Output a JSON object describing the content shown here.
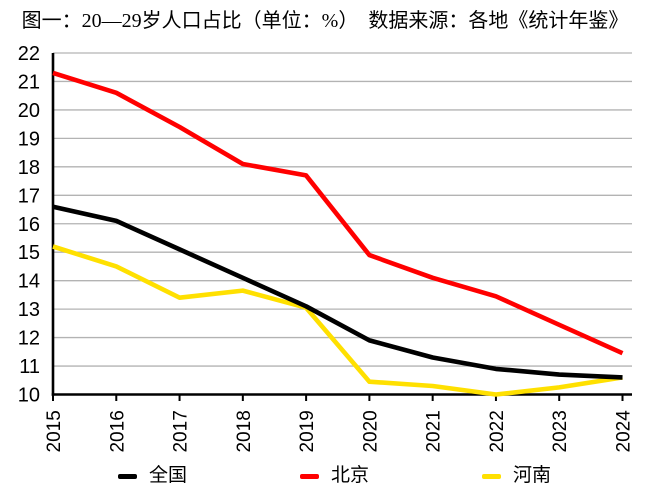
{
  "title": "图一：20—29岁人口占比（单位：%）　数据来源：各地《统计年鉴》",
  "chart_data": {
    "type": "line",
    "x": [
      2015,
      2016,
      2017,
      2018,
      2019,
      2020,
      2021,
      2022,
      2023,
      2024
    ],
    "series": [
      {
        "name": "全国",
        "color": "#000000",
        "values": [
          16.6,
          16.1,
          15.1,
          14.1,
          13.1,
          11.9,
          11.3,
          10.9,
          10.7,
          10.6
        ]
      },
      {
        "name": "北京",
        "color": "#ff0000",
        "values": [
          21.3,
          20.6,
          19.4,
          18.1,
          17.7,
          14.9,
          14.1,
          13.45,
          12.45,
          11.45
        ]
      },
      {
        "name": "河南",
        "color": "#ffe000",
        "values": [
          15.2,
          14.5,
          13.4,
          13.65,
          13.05,
          10.45,
          10.3,
          10.0,
          10.25,
          10.6
        ]
      }
    ],
    "title": "图一：20—29岁人口占比（单位：%）",
    "source_note": "数据来源：各地《统计年鉴》",
    "xlabel": "",
    "ylabel": "",
    "ylim": [
      10,
      22
    ],
    "ytick_step": 1,
    "grid": true,
    "grid_color": "#b3b3b3",
    "axis_color": "#000000",
    "legend_position": "bottom"
  }
}
